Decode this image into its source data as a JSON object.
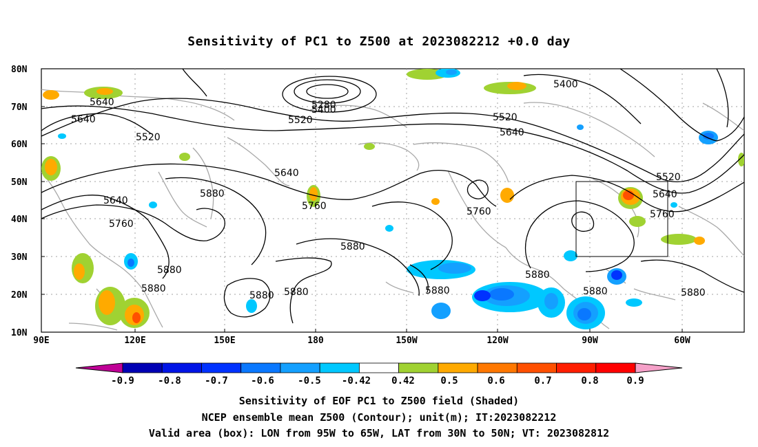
{
  "title": "Sensitivity of PC1 to Z500 at 2023082212 +0.0 day",
  "lat_labels": [
    "80N",
    "70N",
    "60N",
    "50N",
    "40N",
    "30N",
    "20N",
    "10N"
  ],
  "lon_labels": [
    "90E",
    "120E",
    "150E",
    "180",
    "150W",
    "120W",
    "90W",
    "60W"
  ],
  "contour_labels": [
    "5640",
    "5640",
    "5520",
    "5640",
    "5760",
    "5880",
    "5880",
    "5880",
    "5280",
    "5400",
    "5520",
    "5640",
    "5760",
    "5760",
    "5880",
    "5880",
    "5880",
    "5880",
    "5880",
    "5880",
    "5400",
    "5520",
    "5640",
    "5520",
    "5640",
    "5760",
    "5880"
  ],
  "colorbar": {
    "tick_labels": [
      "-0.9",
      "-0.8",
      "-0.7",
      "-0.6",
      "-0.5",
      "-0.42",
      "0.42",
      "0.5",
      "0.6",
      "0.7",
      "0.8",
      "0.9"
    ],
    "colors": [
      "#bf0096",
      "#0000b4",
      "#0014e6",
      "#0032ff",
      "#0a78ff",
      "#14a0ff",
      "#00c8ff",
      "#ffffff",
      "#a0d232",
      "#ffaa00",
      "#ff7800",
      "#ff5000",
      "#ff1e00",
      "#ff0000",
      "#f5a0c8"
    ]
  },
  "valid_box": {
    "lon_west": "95W",
    "lon_east": "65W",
    "lat_south": "30N",
    "lat_north": "50N"
  },
  "captions": [
    "Sensitivity of EOF PC1 to Z500 field (Shaded)",
    "NCEP ensemble mean Z500 (Contour); unit(m); IT:2023082212",
    "Valid area (box): LON from 95W to 65W, LAT from 30N to 50N; VT: 2023082812"
  ]
}
